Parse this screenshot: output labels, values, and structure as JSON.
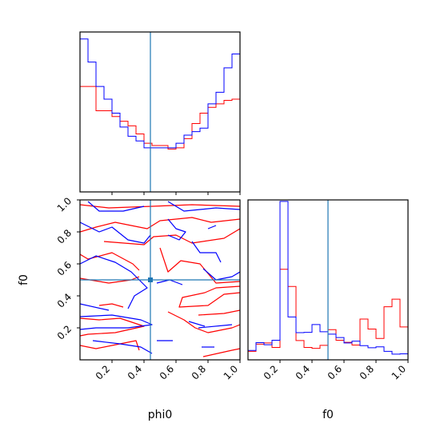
{
  "chart_data": {
    "type": "corner",
    "parameters": [
      "phi0",
      "f0"
    ],
    "truths": {
      "phi0": 0.44,
      "f0": 0.5
    },
    "colors": {
      "red_series": "#ff0000",
      "blue_series": "#0000ff",
      "truth_line": "#1f77b4",
      "frame": "#000000"
    },
    "ticks": {
      "phi0": [
        "0.2",
        "0.4",
        "0.6",
        "0.8",
        "1.0"
      ],
      "f0": [
        "0.2",
        "0.4",
        "0.6",
        "0.8",
        "1.0"
      ]
    },
    "histogram_phi0": {
      "bin_edges": [
        0.0,
        0.05,
        0.1,
        0.15,
        0.2,
        0.25,
        0.3,
        0.35,
        0.4,
        0.45,
        0.5,
        0.55,
        0.6,
        0.65,
        0.7,
        0.75,
        0.8,
        0.85,
        0.9,
        0.95,
        1.0
      ],
      "series": [
        {
          "color": "red",
          "values": [
            0.91,
            0.91,
            0.7,
            0.7,
            0.65,
            0.61,
            0.57,
            0.5,
            0.42,
            0.4,
            0.4,
            0.37,
            0.38,
            0.46,
            0.59,
            0.68,
            0.73,
            0.76,
            0.79,
            0.8
          ]
        },
        {
          "color": "blue",
          "values": [
            1.32,
            1.12,
            0.91,
            0.8,
            0.68,
            0.56,
            0.48,
            0.44,
            0.38,
            0.38,
            0.38,
            0.38,
            0.42,
            0.49,
            0.52,
            0.55,
            0.76,
            0.86,
            1.07,
            1.19
          ]
        }
      ]
    },
    "histogram_f0": {
      "bin_edges": [
        0.0,
        0.05,
        0.1,
        0.15,
        0.2,
        0.25,
        0.3,
        0.35,
        0.4,
        0.45,
        0.5,
        0.55,
        0.6,
        0.65,
        0.7,
        0.75,
        0.8,
        0.85,
        0.9,
        0.95,
        1.0
      ],
      "series": [
        {
          "color": "red",
          "values": [
            0.28,
            0.52,
            0.56,
            0.41,
            3.0,
            2.43,
            0.64,
            0.41,
            0.38,
            0.48,
            1.0,
            0.65,
            0.58,
            0.49,
            1.35,
            1.02,
            0.71,
            1.76,
            2.01,
            1.09
          ]
        },
        {
          "color": "blue",
          "values": [
            0.31,
            0.57,
            0.5,
            0.65,
            5.25,
            1.42,
            0.9,
            0.91,
            1.17,
            0.93,
            0.85,
            0.74,
            0.56,
            0.62,
            0.47,
            0.4,
            0.43,
            0.28,
            0.19,
            0.2
          ]
        }
      ]
    },
    "contours": {
      "red": [
        [
          [
            0.0,
            0.97
          ],
          [
            0.18,
            0.95
          ],
          [
            0.45,
            0.96
          ],
          [
            0.7,
            0.97
          ],
          [
            1.0,
            0.96
          ]
        ],
        [
          [
            0.0,
            0.8
          ],
          [
            0.1,
            0.83
          ],
          [
            0.22,
            0.86
          ],
          [
            0.42,
            0.82
          ],
          [
            0.5,
            0.87
          ],
          [
            0.7,
            0.89
          ],
          [
            0.82,
            0.86
          ],
          [
            1.0,
            0.88
          ]
        ],
        [
          [
            0.15,
            0.74
          ],
          [
            0.4,
            0.72
          ],
          [
            0.46,
            0.77
          ],
          [
            0.6,
            0.78
          ],
          [
            0.7,
            0.73
          ],
          [
            0.9,
            0.76
          ],
          [
            1.0,
            0.82
          ]
        ],
        [
          [
            0.0,
            0.66
          ],
          [
            0.05,
            0.63
          ],
          [
            0.2,
            0.67
          ],
          [
            0.33,
            0.6
          ],
          [
            0.37,
            0.56
          ]
        ],
        [
          [
            0.0,
            0.51
          ],
          [
            0.18,
            0.48
          ],
          [
            0.32,
            0.5
          ],
          [
            0.37,
            0.52
          ]
        ],
        [
          [
            0.5,
            0.7
          ],
          [
            0.55,
            0.55
          ],
          [
            0.63,
            0.62
          ],
          [
            0.75,
            0.6
          ],
          [
            0.85,
            0.48
          ],
          [
            1.0,
            0.49
          ]
        ],
        [
          [
            1.0,
            0.46
          ],
          [
            0.85,
            0.45
          ],
          [
            0.78,
            0.42
          ],
          [
            0.64,
            0.39
          ],
          [
            0.62,
            0.33
          ],
          [
            0.8,
            0.34
          ],
          [
            0.9,
            0.41
          ],
          [
            1.0,
            0.42
          ]
        ],
        [
          [
            0.0,
            0.26
          ],
          [
            0.12,
            0.25
          ],
          [
            0.25,
            0.26
          ],
          [
            0.4,
            0.21
          ],
          [
            0.22,
            0.17
          ],
          [
            0.05,
            0.16
          ],
          [
            0.0,
            0.15
          ]
        ],
        [
          [
            0.12,
            0.34
          ],
          [
            0.2,
            0.35
          ],
          [
            0.27,
            0.33
          ]
        ],
        [
          [
            0.0,
            0.09
          ],
          [
            0.1,
            0.07
          ],
          [
            0.25,
            0.1
          ],
          [
            0.35,
            0.12
          ],
          [
            0.37,
            0.06
          ]
        ],
        [
          [
            0.55,
            0.3
          ],
          [
            0.65,
            0.25
          ],
          [
            0.72,
            0.2
          ],
          [
            0.8,
            0.17
          ],
          [
            0.95,
            0.2
          ],
          [
            1.0,
            0.22
          ]
        ],
        [
          [
            0.74,
            0.28
          ],
          [
            0.9,
            0.29
          ],
          [
            1.0,
            0.31
          ]
        ],
        [
          [
            0.77,
            0.02
          ],
          [
            0.95,
            0.06
          ],
          [
            1.0,
            0.07
          ]
        ]
      ],
      "blue": [
        [
          [
            0.05,
            0.99
          ],
          [
            0.12,
            0.93
          ],
          [
            0.27,
            0.93
          ],
          [
            0.4,
            0.96
          ]
        ],
        [
          [
            0.55,
            0.99
          ],
          [
            0.65,
            0.93
          ],
          [
            0.85,
            0.95
          ],
          [
            1.0,
            0.94
          ]
        ],
        [
          [
            0.0,
            0.86
          ],
          [
            0.12,
            0.8
          ],
          [
            0.2,
            0.83
          ],
          [
            0.3,
            0.75
          ],
          [
            0.4,
            0.73
          ],
          [
            0.44,
            0.78
          ]
        ],
        [
          [
            0.55,
            0.88
          ],
          [
            0.6,
            0.82
          ],
          [
            0.66,
            0.8
          ],
          [
            0.62,
            0.75
          ],
          [
            0.55,
            0.78
          ]
        ],
        [
          [
            0.8,
            0.82
          ],
          [
            0.85,
            0.84
          ]
        ],
        [
          [
            0.0,
            0.6
          ],
          [
            0.1,
            0.65
          ],
          [
            0.22,
            0.61
          ],
          [
            0.32,
            0.55
          ],
          [
            0.42,
            0.45
          ],
          [
            0.34,
            0.4
          ],
          [
            0.3,
            0.32
          ]
        ],
        [
          [
            0.0,
            0.35
          ],
          [
            0.18,
            0.31
          ]
        ],
        [
          [
            0.48,
            0.48
          ],
          [
            0.56,
            0.5
          ],
          [
            0.64,
            0.47
          ]
        ],
        [
          [
            0.7,
            0.74
          ],
          [
            0.75,
            0.67
          ],
          [
            0.85,
            0.67
          ],
          [
            0.88,
            0.61
          ]
        ],
        [
          [
            0.77,
            0.57
          ],
          [
            0.85,
            0.5
          ],
          [
            0.95,
            0.52
          ],
          [
            1.0,
            0.55
          ]
        ],
        [
          [
            0.0,
            0.27
          ],
          [
            0.2,
            0.28
          ],
          [
            0.38,
            0.25
          ],
          [
            0.45,
            0.22
          ],
          [
            0.3,
            0.2
          ],
          [
            0.1,
            0.2
          ],
          [
            0.0,
            0.19
          ]
        ],
        [
          [
            0.08,
            0.12
          ],
          [
            0.25,
            0.1
          ],
          [
            0.38,
            0.08
          ],
          [
            0.45,
            0.04
          ]
        ],
        [
          [
            0.68,
            0.24
          ],
          [
            0.78,
            0.21
          ]
        ],
        [
          [
            0.74,
            0.2
          ],
          [
            0.95,
            0.22
          ]
        ],
        [
          [
            0.48,
            0.12
          ],
          [
            0.58,
            0.12
          ]
        ],
        [
          [
            0.76,
            0.08
          ],
          [
            0.84,
            0.08
          ]
        ]
      ]
    }
  }
}
